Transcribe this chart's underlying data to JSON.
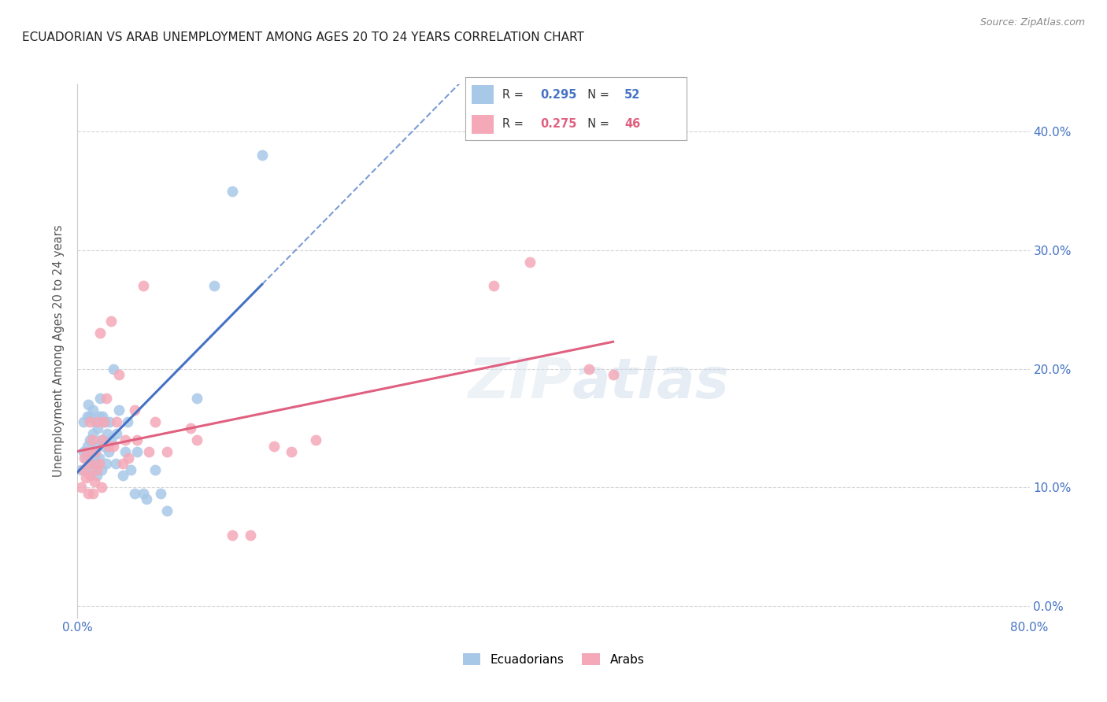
{
  "title": "ECUADORIAN VS ARAB UNEMPLOYMENT AMONG AGES 20 TO 24 YEARS CORRELATION CHART",
  "source": "Source: ZipAtlas.com",
  "ylabel": "Unemployment Among Ages 20 to 24 years",
  "xlim": [
    0.0,
    0.8
  ],
  "ylim": [
    -0.01,
    0.44
  ],
  "x_ticks": [
    0.0,
    0.1,
    0.2,
    0.3,
    0.4,
    0.5,
    0.6,
    0.7,
    0.8
  ],
  "x_tick_labels": [
    "0.0%",
    "",
    "",
    "",
    "",
    "",
    "",
    "",
    "80.0%"
  ],
  "y_ticks": [
    0.0,
    0.1,
    0.2,
    0.3,
    0.4
  ],
  "y_tick_labels": [
    "0.0%",
    "10.0%",
    "20.0%",
    "30.0%",
    "40.0%"
  ],
  "r_ecu": 0.295,
  "n_ecu": 52,
  "r_arab": 0.275,
  "n_arab": 46,
  "ecu_color": "#a8c8e8",
  "arab_color": "#f4a8b8",
  "ecu_line_color": "#4472c4",
  "arab_line_color": "#e06080",
  "legend_ecu": "Ecuadorians",
  "legend_arab": "Arabs",
  "background_color": "#ffffff",
  "ecuadorians_x": [
    0.003,
    0.005,
    0.005,
    0.007,
    0.008,
    0.008,
    0.009,
    0.01,
    0.01,
    0.01,
    0.012,
    0.012,
    0.013,
    0.013,
    0.014,
    0.015,
    0.015,
    0.016,
    0.016,
    0.017,
    0.018,
    0.018,
    0.019,
    0.02,
    0.02,
    0.021,
    0.022,
    0.023,
    0.024,
    0.025,
    0.026,
    0.027,
    0.028,
    0.03,
    0.032,
    0.033,
    0.035,
    0.038,
    0.04,
    0.042,
    0.045,
    0.048,
    0.05,
    0.055,
    0.058,
    0.065,
    0.07,
    0.075,
    0.1,
    0.115,
    0.13,
    0.155
  ],
  "ecuadorians_y": [
    0.115,
    0.13,
    0.155,
    0.125,
    0.135,
    0.16,
    0.17,
    0.12,
    0.14,
    0.16,
    0.115,
    0.13,
    0.145,
    0.165,
    0.125,
    0.12,
    0.155,
    0.11,
    0.135,
    0.15,
    0.125,
    0.16,
    0.175,
    0.115,
    0.14,
    0.16,
    0.135,
    0.155,
    0.12,
    0.145,
    0.13,
    0.155,
    0.14,
    0.2,
    0.12,
    0.145,
    0.165,
    0.11,
    0.13,
    0.155,
    0.115,
    0.095,
    0.13,
    0.095,
    0.09,
    0.115,
    0.095,
    0.08,
    0.175,
    0.27,
    0.35,
    0.38
  ],
  "arabs_x": [
    0.003,
    0.005,
    0.006,
    0.007,
    0.008,
    0.009,
    0.01,
    0.01,
    0.011,
    0.012,
    0.013,
    0.014,
    0.015,
    0.016,
    0.017,
    0.018,
    0.019,
    0.02,
    0.021,
    0.022,
    0.024,
    0.026,
    0.028,
    0.03,
    0.033,
    0.035,
    0.038,
    0.04,
    0.043,
    0.048,
    0.05,
    0.055,
    0.06,
    0.065,
    0.075,
    0.095,
    0.1,
    0.13,
    0.145,
    0.165,
    0.18,
    0.2,
    0.35,
    0.38,
    0.43,
    0.45
  ],
  "arabs_y": [
    0.1,
    0.115,
    0.125,
    0.108,
    0.13,
    0.095,
    0.11,
    0.155,
    0.12,
    0.14,
    0.095,
    0.105,
    0.13,
    0.115,
    0.155,
    0.12,
    0.23,
    0.1,
    0.14,
    0.155,
    0.175,
    0.135,
    0.24,
    0.135,
    0.155,
    0.195,
    0.12,
    0.14,
    0.125,
    0.165,
    0.14,
    0.27,
    0.13,
    0.155,
    0.13,
    0.15,
    0.14,
    0.06,
    0.06,
    0.135,
    0.13,
    0.14,
    0.27,
    0.29,
    0.2,
    0.195
  ]
}
